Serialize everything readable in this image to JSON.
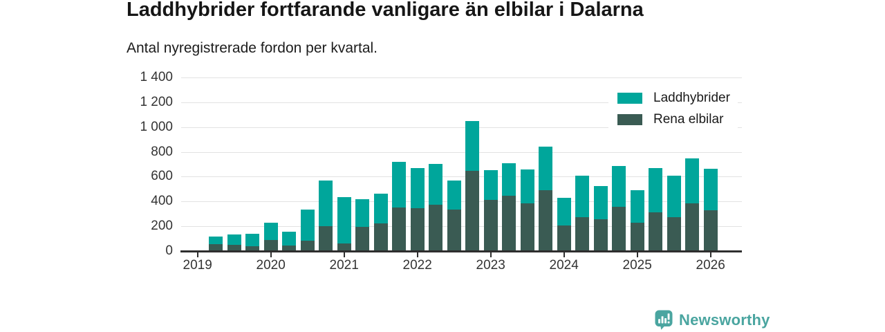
{
  "header": {
    "title": "Laddhybrider fortfarande vanligare än elbilar i Dalarna",
    "subtitle": "Antal nyregistrerade fordon per kvartal."
  },
  "chart_data": {
    "type": "bar",
    "stacked": true,
    "title": "Laddhybrider fortfarande vanligare än elbilar i Dalarna",
    "subtitle": "Antal nyregistrerade fordon per kvartal.",
    "categories": [
      "2019 Q2",
      "2019 Q3",
      "2019 Q4",
      "2020 Q1",
      "2020 Q2",
      "2020 Q3",
      "2020 Q4",
      "2021 Q1",
      "2021 Q2",
      "2021 Q3",
      "2021 Q4",
      "2022 Q1",
      "2022 Q2",
      "2022 Q3",
      "2022 Q4",
      "2023 Q1",
      "2023 Q2",
      "2023 Q3",
      "2023 Q4",
      "2024 Q1",
      "2024 Q2",
      "2024 Q3",
      "2024 Q4",
      "2025 Q1",
      "2025 Q2",
      "2025 Q3",
      "2025 Q4",
      "2026 Q1"
    ],
    "series": [
      {
        "name": "Laddhybrider",
        "color": "#00a69b",
        "values": [
          60,
          84,
          100,
          138,
          110,
          250,
          370,
          373,
          224,
          238,
          368,
          324,
          327,
          235,
          402,
          240,
          265,
          277,
          350,
          225,
          335,
          266,
          329,
          264,
          353,
          332,
          363,
          336
        ]
      },
      {
        "name": "Rena elbilar",
        "color": "#3a5b53",
        "values": [
          55,
          52,
          40,
          90,
          45,
          85,
          200,
          62,
          196,
          224,
          352,
          346,
          375,
          335,
          648,
          410,
          445,
          383,
          490,
          205,
          275,
          259,
          356,
          228,
          315,
          276,
          385,
          327
        ]
      }
    ],
    "stack_bottom": "Rena elbilar",
    "totals": [
      115,
      136,
      140,
      228,
      155,
      335,
      570,
      435,
      420,
      462,
      720,
      670,
      702,
      570,
      1050,
      650,
      710,
      660,
      840,
      430,
      610,
      525,
      685,
      492,
      668,
      608,
      748,
      663
    ],
    "xlabel": "",
    "ylabel": "",
    "ylim": [
      0,
      1400
    ],
    "yticks": {
      "values": [
        0,
        200,
        400,
        600,
        800,
        1000,
        1200,
        1400
      ],
      "labels": [
        "0",
        "200",
        "400",
        "600",
        "800",
        "1 000",
        "1 200",
        "1 400"
      ]
    },
    "xticks": [
      "2019",
      "2020",
      "2021",
      "2022",
      "2023",
      "2024",
      "2025",
      "2026"
    ],
    "grid": "horizontal",
    "legend_position": "top-right"
  },
  "footer": {
    "brand": "Newsworthy"
  }
}
